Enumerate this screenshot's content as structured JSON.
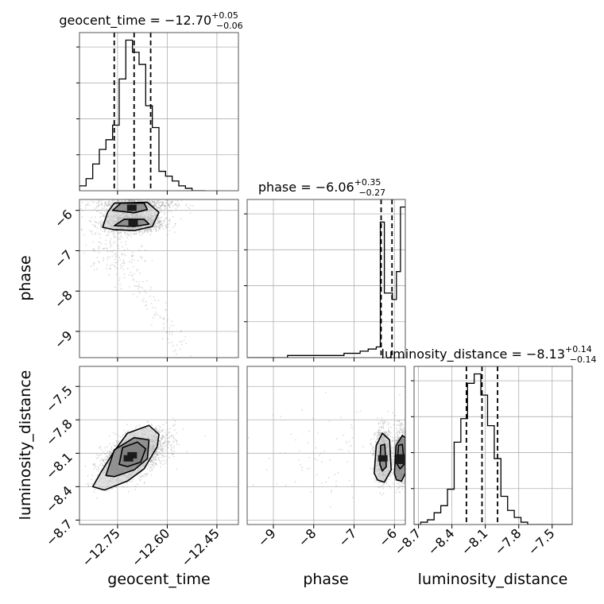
{
  "chart_data": {
    "type": "corner",
    "parameters": [
      "geocent_time",
      "phase",
      "luminosity_distance"
    ],
    "titles": [
      {
        "param": "geocent_time",
        "prefix": "geocent_time = −12.70",
        "sup": "+0.05",
        "sub": "−0.06"
      },
      {
        "param": "phase",
        "prefix": "phase = −6.06",
        "sup": "+0.35",
        "sub": "−0.27"
      },
      {
        "param": "luminosity_distance",
        "prefix": "luminosity_distance = −8.13",
        "sup": "+0.14",
        "sub": "−0.14"
      }
    ],
    "axis_labels": {
      "x": [
        "geocent_time",
        "phase",
        "luminosity_distance"
      ],
      "y": [
        "phase",
        "luminosity_distance"
      ]
    },
    "ranges": {
      "geocent_time": [
        -12.865,
        -12.385
      ],
      "phase": [
        -9.65,
        -5.73
      ],
      "luminosity_distance": [
        -8.74,
        -7.32
      ]
    },
    "ticks": {
      "geocent_time": [
        -12.75,
        -12.6,
        -12.45
      ],
      "phase": [
        -9,
        -8,
        -7,
        -6
      ],
      "luminosity_distance": [
        -8.7,
        -8.4,
        -8.1,
        -7.8,
        -7.5
      ]
    },
    "tick_labels": {
      "geocent_time": [
        "−12.75",
        "−12.60",
        "−12.45"
      ],
      "phase": [
        "−9",
        "−8",
        "−7",
        "−6"
      ],
      "luminosity_distance": [
        "−8.7",
        "−8.4",
        "−8.1",
        "−7.8",
        "−7.5"
      ]
    },
    "quantiles": {
      "geocent_time": [
        -12.76,
        -12.7,
        -12.65
      ],
      "phase": [
        -6.33,
        -6.06,
        -5.71
      ],
      "luminosity_distance": [
        -8.27,
        -8.13,
        -7.99
      ]
    },
    "histograms": {
      "geocent_time": {
        "edges": [
          -12.865,
          -12.845,
          -12.825,
          -12.805,
          -12.785,
          -12.765,
          -12.745,
          -12.725,
          -12.705,
          -12.685,
          -12.665,
          -12.645,
          -12.625,
          -12.605,
          -12.585,
          -12.565,
          -12.545,
          -12.525,
          -12.505,
          -12.485
        ],
        "counts": [
          2,
          5,
          11,
          17,
          21,
          27,
          46,
          62,
          57,
          52,
          35,
          26,
          8,
          6,
          4,
          2,
          1,
          0,
          0
        ]
      },
      "phase": {
        "edges": [
          -9.65,
          -9.45,
          -9.25,
          -9.05,
          -8.85,
          -8.65,
          -8.45,
          -8.25,
          -8.05,
          -7.85,
          -7.65,
          -7.45,
          -7.25,
          -7.05,
          -6.85,
          -6.65,
          -6.45,
          -6.35,
          -6.25,
          -6.05,
          -5.95,
          -5.85,
          -5.73
        ],
        "counts": [
          0,
          0,
          0,
          0,
          0,
          1,
          1,
          1,
          1,
          1,
          1,
          1,
          2,
          2,
          3,
          4,
          5,
          63,
          30,
          27,
          40,
          70
        ]
      },
      "luminosity_distance": {
        "edges": [
          -8.74,
          -8.68,
          -8.62,
          -8.56,
          -8.5,
          -8.44,
          -8.38,
          -8.32,
          -8.26,
          -8.2,
          -8.14,
          -8.08,
          -8.02,
          -7.96,
          -7.9,
          -7.84,
          -7.78,
          -7.72,
          -7.66,
          -7.6,
          -7.54,
          -7.48,
          -7.42,
          -7.32
        ],
        "counts": [
          0,
          1,
          2,
          5,
          8,
          15,
          35,
          45,
          60,
          64,
          55,
          42,
          28,
          12,
          6,
          3,
          1,
          0,
          0,
          0,
          0,
          0,
          0
        ]
      }
    },
    "scatter_2d": [
      {
        "x_param": "geocent_time",
        "y_param": "phase",
        "clusters": [
          {
            "x": -12.7,
            "y": -6.3,
            "sx": 0.045,
            "sy": 0.12,
            "n": 1300
          },
          {
            "x": -12.7,
            "y": -5.85,
            "sx": 0.06,
            "sy": 0.1,
            "n": 700
          },
          {
            "x": -12.77,
            "y": -7.0,
            "sx": 0.05,
            "sy": 0.4,
            "n": 120
          }
        ],
        "tail": {
          "x_from": -12.8,
          "x_to": -12.56,
          "y_from": -6.5,
          "y_to": -9.4,
          "n": 140
        }
      },
      {
        "x_param": "geocent_time",
        "y_param": "luminosity_distance",
        "clusters": [
          {
            "x": -12.7,
            "y": -8.12,
            "sx": 0.05,
            "sy": 0.11,
            "n": 2200,
            "rho": 0.55
          }
        ]
      },
      {
        "x_param": "phase",
        "y_param": "luminosity_distance",
        "clusters": [
          {
            "x": -6.28,
            "y": -8.12,
            "sx": 0.1,
            "sy": 0.12,
            "n": 900
          },
          {
            "x": -5.85,
            "y": -8.12,
            "sx": 0.08,
            "sy": 0.12,
            "n": 900
          },
          {
            "x": -7.6,
            "y": -8.1,
            "sx": 0.9,
            "sy": 0.22,
            "n": 90
          }
        ]
      }
    ],
    "contours": [
      {
        "x_param": "geocent_time",
        "y_param": "phase",
        "levels": [
          [
            [
              -12.795,
              -6.42
            ],
            [
              -12.78,
              -6.05
            ],
            [
              -12.76,
              -5.82
            ],
            [
              -12.66,
              -5.8
            ],
            [
              -12.625,
              -6.05
            ],
            [
              -12.645,
              -6.4
            ],
            [
              -12.7,
              -6.5
            ],
            [
              -12.76,
              -6.48
            ]
          ],
          [
            [
              -12.76,
              -6.38
            ],
            [
              -12.73,
              -6.22
            ],
            [
              -12.67,
              -6.22
            ],
            [
              -12.655,
              -6.34
            ],
            [
              -12.7,
              -6.4
            ]
          ],
          [
            [
              -12.765,
              -6.0
            ],
            [
              -12.74,
              -5.82
            ],
            [
              -12.67,
              -5.82
            ],
            [
              -12.66,
              -5.98
            ],
            [
              -12.7,
              -6.06
            ]
          ]
        ]
      },
      {
        "x_param": "geocent_time",
        "y_param": "luminosity_distance",
        "levels": [
          [
            [
              -12.825,
              -8.4
            ],
            [
              -12.8,
              -8.27
            ],
            [
              -12.76,
              -8.08
            ],
            [
              -12.72,
              -7.92
            ],
            [
              -12.655,
              -7.85
            ],
            [
              -12.625,
              -7.93
            ],
            [
              -12.63,
              -8.04
            ],
            [
              -12.67,
              -8.24
            ],
            [
              -12.72,
              -8.35
            ],
            [
              -12.79,
              -8.43
            ]
          ],
          [
            [
              -12.785,
              -8.3
            ],
            [
              -12.76,
              -8.07
            ],
            [
              -12.7,
              -7.96
            ],
            [
              -12.655,
              -7.98
            ],
            [
              -12.66,
              -8.15
            ],
            [
              -12.7,
              -8.25
            ],
            [
              -12.76,
              -8.31
            ]
          ],
          [
            [
              -12.745,
              -8.2
            ],
            [
              -12.735,
              -8.05
            ],
            [
              -12.69,
              -8.0
            ],
            [
              -12.665,
              -8.06
            ],
            [
              -12.68,
              -8.18
            ],
            [
              -12.72,
              -8.22
            ]
          ]
        ]
      },
      {
        "x_param": "phase",
        "y_param": "luminosity_distance",
        "levels": [
          [
            [
              -6.5,
              -8.28
            ],
            [
              -6.45,
              -8.03
            ],
            [
              -6.3,
              -7.92
            ],
            [
              -6.12,
              -7.98
            ],
            [
              -6.08,
              -8.25
            ],
            [
              -6.25,
              -8.36
            ],
            [
              -6.42,
              -8.34
            ]
          ],
          [
            [
              -6.36,
              -8.2
            ],
            [
              -6.34,
              -8.03
            ],
            [
              -6.24,
              -8.02
            ],
            [
              -6.2,
              -8.22
            ],
            [
              -6.3,
              -8.26
            ]
          ],
          [
            [
              -6.0,
              -8.28
            ],
            [
              -5.96,
              -8.03
            ],
            [
              -5.8,
              -7.94
            ],
            [
              -5.73,
              -7.96
            ],
            [
              -5.73,
              -8.28
            ],
            [
              -5.82,
              -8.35
            ],
            [
              -5.95,
              -8.34
            ]
          ],
          [
            [
              -5.93,
              -8.2
            ],
            [
              -5.9,
              -8.03
            ],
            [
              -5.8,
              -8.02
            ],
            [
              -5.76,
              -8.2
            ],
            [
              -5.86,
              -8.24
            ]
          ]
        ]
      }
    ],
    "colors": {
      "line": "#000000",
      "grid": "#b0b0b0",
      "points": "#9a9a9a",
      "fill_dark": "#1a1a1a",
      "fill_mid": "#7d7d7d",
      "fill_light": "#c8c8c8"
    },
    "grid": true
  }
}
